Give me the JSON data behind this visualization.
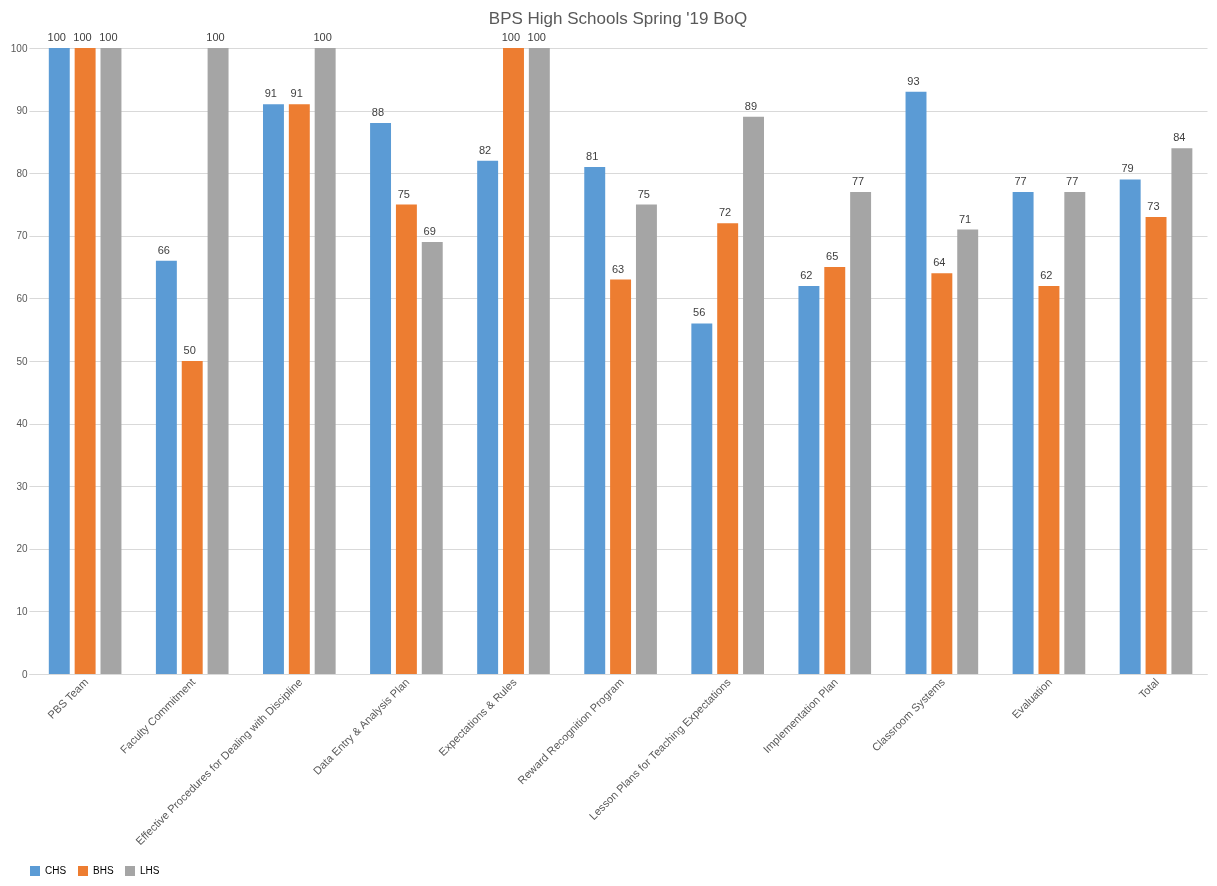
{
  "chart_data": {
    "type": "bar",
    "title": "BPS High Schools Spring '19 BoQ",
    "categories": [
      "PBS Team",
      "Faculty Commitment",
      "Effective Procedures for Dealing with Discipline",
      "Data Entry & Analysis Plan",
      "Expectations & Rules",
      "Reward Recognition Program",
      "Lesson Plans for Teaching Expectations",
      "Implementation Plan",
      "Classroom Systems",
      "Evaluation",
      "Total"
    ],
    "series": [
      {
        "name": "CHS",
        "color": "#5b9bd5",
        "values": [
          100,
          66,
          91,
          88,
          82,
          81,
          56,
          62,
          93,
          77,
          79
        ]
      },
      {
        "name": "BHS",
        "color": "#ed7d31",
        "values": [
          100,
          50,
          91,
          75,
          100,
          63,
          72,
          65,
          64,
          62,
          73
        ]
      },
      {
        "name": "LHS",
        "color": "#a5a5a5",
        "values": [
          100,
          100,
          100,
          69,
          100,
          75,
          89,
          77,
          71,
          77,
          84
        ]
      }
    ],
    "ylim": [
      0,
      100
    ],
    "yticks": [
      0,
      10,
      20,
      30,
      40,
      50,
      60,
      70,
      80,
      90,
      100
    ],
    "grid": "y",
    "legend": "bottom",
    "data_labels": true
  }
}
